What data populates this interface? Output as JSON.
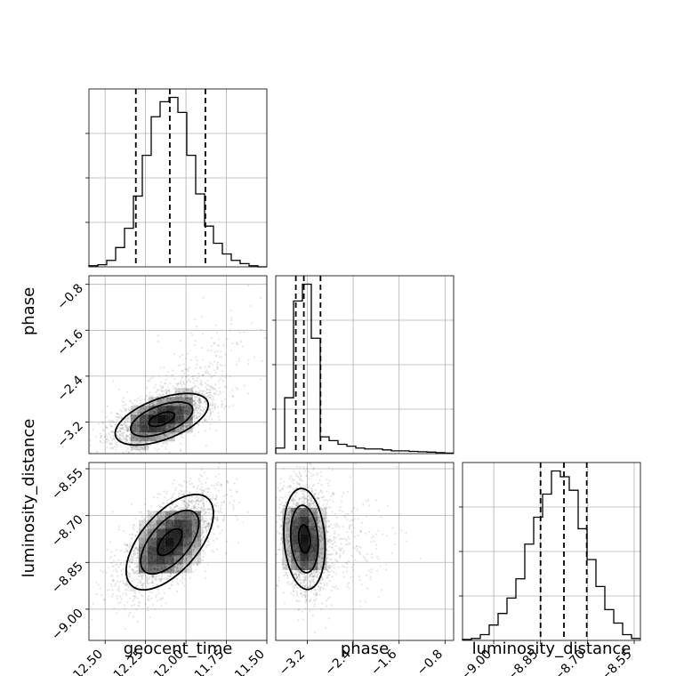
{
  "chart_data": {
    "type": "corner",
    "parameters": [
      "geocent_time",
      "phase",
      "luminosity_distance"
    ],
    "ranges": {
      "geocent_time": [
        -12.6,
        -11.5
      ],
      "phase": [
        -3.75,
        -0.65
      ],
      "luminosity_distance": [
        -9.1,
        -8.53
      ]
    },
    "ticks": {
      "geocent_time": {
        "values": [
          -12.5,
          -12.25,
          -12.0,
          -11.75,
          -11.5
        ],
        "labels": [
          "−12.50",
          "−12.25",
          "−12.00",
          "−11.75",
          "−11.50"
        ]
      },
      "phase": {
        "values": [
          -3.2,
          -2.4,
          -1.6,
          -0.8
        ],
        "labels": [
          "−3.2",
          "−2.4",
          "−1.6",
          "−0.8"
        ]
      },
      "luminosity_distance": {
        "values": [
          -9.0,
          -8.85,
          -8.7,
          -8.55
        ],
        "labels": [
          "−9.00",
          "−8.85",
          "−8.70",
          "−8.55"
        ]
      }
    },
    "grid": true,
    "histograms": {
      "geocent_time": {
        "bin_edges": [
          -12.6,
          -12.545,
          -12.49,
          -12.435,
          -12.38,
          -12.325,
          -12.27,
          -12.215,
          -12.16,
          -12.105,
          -12.05,
          -11.995,
          -11.94,
          -11.885,
          -11.83,
          -11.775,
          -11.72,
          -11.665,
          -11.61,
          -11.555,
          -11.5
        ],
        "counts": [
          0.5,
          1,
          3,
          9,
          18,
          33,
          52,
          70,
          77,
          79,
          72,
          52,
          34,
          19,
          11,
          6,
          3,
          1.5,
          0.5,
          0
        ],
        "quantiles": [
          -12.31,
          -12.1,
          -11.88
        ]
      },
      "phase": {
        "bin_edges": [
          -3.75,
          -3.595,
          -3.44,
          -3.285,
          -3.13,
          -2.975,
          -2.82,
          -2.665,
          -2.51,
          -2.355,
          -2.2,
          -2.045,
          -1.89,
          -1.735,
          -1.58,
          -1.425,
          -1.27,
          -1.115,
          -0.96,
          -0.805,
          -0.65
        ],
        "counts": [
          3,
          30,
          82,
          91,
          62,
          9,
          7,
          5,
          4,
          3,
          2.5,
          2.5,
          2,
          1.5,
          1.5,
          1.2,
          1,
          0.8,
          0.5,
          0.3
        ],
        "quantiles": [
          -3.4,
          -3.26,
          -2.97
        ]
      },
      "luminosity_distance": {
        "bin_edges": [
          -9.1,
          -9.0715,
          -9.043,
          -9.0145,
          -8.986,
          -8.9575,
          -8.929,
          -8.9005,
          -8.872,
          -8.8435,
          -8.815,
          -8.7865,
          -8.758,
          -8.7295,
          -8.701,
          -8.6725,
          -8.644,
          -8.6155,
          -8.587,
          -8.5585,
          -8.53
        ],
        "counts": [
          0.5,
          1,
          3,
          8,
          14,
          22,
          32,
          50,
          64,
          76,
          88,
          85,
          78,
          58,
          42,
          28,
          16,
          9,
          3,
          1
        ],
        "quantiles": [
          -8.85,
          -8.775,
          -8.702
        ]
      }
    },
    "pairs": [
      {
        "x": "geocent_time",
        "y": "phase",
        "center": [
          -12.15,
          -3.15
        ],
        "sd": [
          0.16,
          0.25
        ],
        "corr": 0.55,
        "levels": [
          0.5,
          1.2,
          1.8
        ],
        "samples": 2300,
        "tail": true
      },
      {
        "x": "geocent_time",
        "y": "luminosity_distance",
        "center": [
          -12.1,
          -8.785
        ],
        "sd": [
          0.15,
          0.085
        ],
        "corr": 0.6,
        "levels": [
          0.5,
          1.2,
          1.8
        ],
        "samples": 2300,
        "tail": false
      },
      {
        "x": "phase",
        "y": "luminosity_distance",
        "center": [
          -3.25,
          -8.775
        ],
        "sd": [
          0.2,
          0.09
        ],
        "corr": -0.15,
        "levels": [
          0.5,
          1.2,
          1.8
        ],
        "samples": 2300,
        "tail": true
      }
    ]
  }
}
